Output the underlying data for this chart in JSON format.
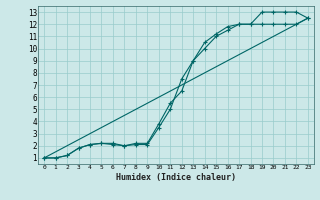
{
  "xlabel": "Humidex (Indice chaleur)",
  "bg_color": "#cce8e8",
  "grid_color": "#99cccc",
  "line_color": "#006666",
  "xlim": [
    -0.5,
    23.5
  ],
  "ylim": [
    0.5,
    13.5
  ],
  "xticks": [
    0,
    1,
    2,
    3,
    4,
    5,
    6,
    7,
    8,
    9,
    10,
    11,
    12,
    13,
    14,
    15,
    16,
    17,
    18,
    19,
    20,
    21,
    22,
    23
  ],
  "yticks": [
    1,
    2,
    3,
    4,
    5,
    6,
    7,
    8,
    9,
    10,
    11,
    12,
    13
  ],
  "line1_x": [
    0,
    1,
    2,
    3,
    4,
    5,
    6,
    7,
    8,
    9,
    10,
    11,
    12,
    13,
    14,
    15,
    16,
    17,
    18,
    19,
    20,
    21,
    22,
    23
  ],
  "line1_y": [
    1,
    1,
    1.2,
    1.8,
    2.1,
    2.2,
    2.1,
    2.0,
    2.1,
    2.1,
    3.5,
    5.0,
    7.5,
    9.0,
    10.5,
    11.2,
    11.8,
    12.0,
    12.0,
    13.0,
    13.0,
    13.0,
    13.0,
    12.5
  ],
  "line2_x": [
    0,
    1,
    2,
    3,
    4,
    5,
    6,
    7,
    8,
    9,
    10,
    11,
    12,
    13,
    14,
    15,
    16,
    17,
    18,
    19,
    20,
    21,
    22,
    23
  ],
  "line2_y": [
    1,
    1,
    1.2,
    1.8,
    2.1,
    2.2,
    2.2,
    2.0,
    2.2,
    2.2,
    3.8,
    5.5,
    6.5,
    9.0,
    10.0,
    11.0,
    11.5,
    12.0,
    12.0,
    12.0,
    12.0,
    12.0,
    12.0,
    12.5
  ],
  "line3_x": [
    0,
    23
  ],
  "line3_y": [
    1,
    12.5
  ],
  "xlabel_fontsize": 6,
  "tick_fontsize_x": 4.5,
  "tick_fontsize_y": 5.5
}
